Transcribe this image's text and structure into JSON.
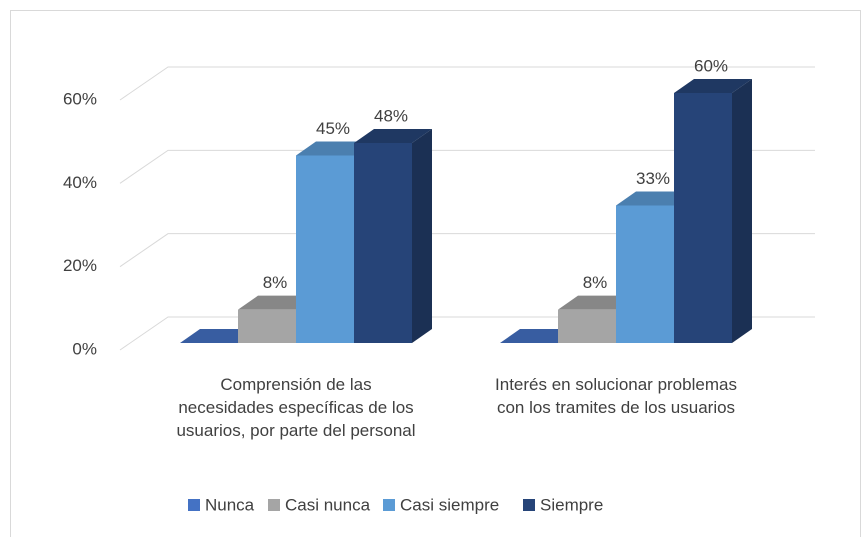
{
  "chart_data": {
    "type": "bar3d",
    "categories": [
      "Comprensión de  las necesidades específicas de los usuarios, por parte del personal",
      "Interés en solucionar problemas con los tramites de los usuarios"
    ],
    "series": [
      {
        "name": "Nunca",
        "color": "#4472c4",
        "values": [
          0,
          0
        ],
        "value_labels": [
          null,
          null
        ]
      },
      {
        "name": "Casi nunca",
        "color": "#a5a5a5",
        "values": [
          8,
          8
        ],
        "value_labels": [
          "8%",
          "8%"
        ]
      },
      {
        "name": "Casi siempre",
        "color": "#5b9bd5",
        "values": [
          45,
          33
        ],
        "value_labels": [
          "45%",
          "33%"
        ]
      },
      {
        "name": "Siempre",
        "color": "#264478",
        "values": [
          48,
          60
        ],
        "value_labels": [
          "48%",
          "60%"
        ]
      }
    ],
    "ylim": [
      0,
      60
    ],
    "yticks": [
      {
        "value": 0,
        "label": "0%"
      },
      {
        "value": 20,
        "label": "20%"
      },
      {
        "value": 40,
        "label": "40%"
      },
      {
        "value": 60,
        "label": "60%"
      }
    ],
    "grid": true,
    "legend": "bottom"
  }
}
